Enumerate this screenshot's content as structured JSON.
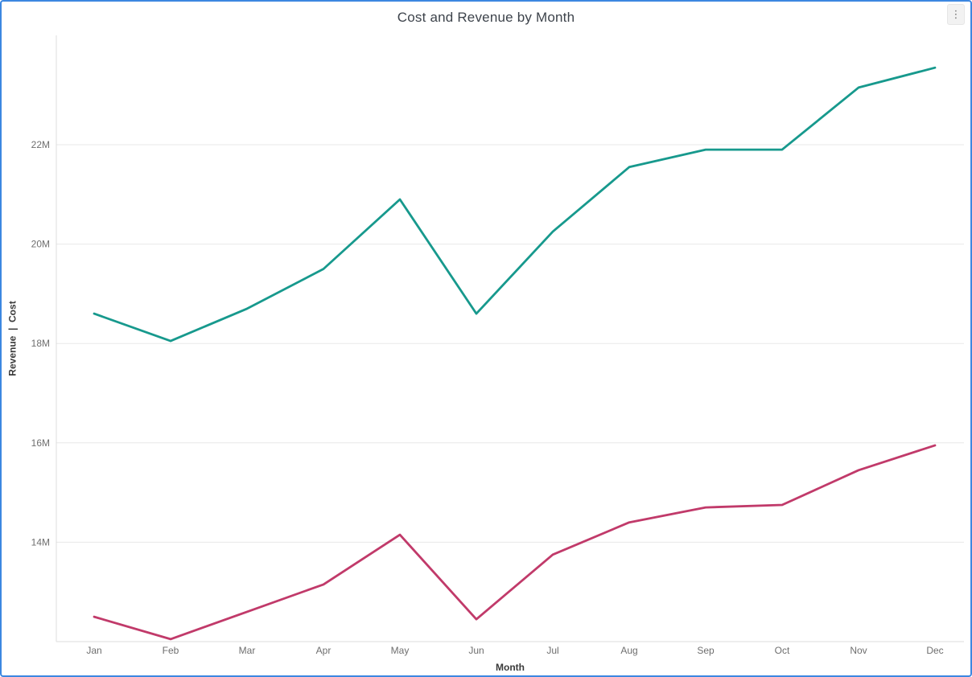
{
  "card": {
    "more_options_icon": "⋮",
    "border_color": "#3C87E1"
  },
  "chart_data": {
    "type": "line",
    "title": "Cost and Revenue by Month",
    "categories": [
      "Jan",
      "Feb",
      "Mar",
      "Apr",
      "May",
      "Jun",
      "Jul",
      "Aug",
      "Sep",
      "Oct",
      "Nov",
      "Dec"
    ],
    "series": [
      {
        "name": "Revenue",
        "color": "#17998D",
        "values": [
          18.6,
          18.05,
          18.7,
          19.5,
          20.9,
          18.6,
          20.25,
          21.55,
          21.9,
          21.9,
          23.15,
          23.55
        ]
      },
      {
        "name": "Cost",
        "color": "#C13A6A",
        "values": [
          12.5,
          12.05,
          12.6,
          13.15,
          14.15,
          12.45,
          13.75,
          14.4,
          14.7,
          14.75,
          15.45,
          15.95
        ]
      }
    ],
    "unit": "M",
    "xlabel": "Month",
    "ylabel": "Revenue  |  Cost",
    "ylim": [
      12,
      24.2
    ],
    "y_ticks": [
      {
        "label": "14M",
        "value": 14
      },
      {
        "label": "16M",
        "value": 16
      },
      {
        "label": "18M",
        "value": 18
      },
      {
        "label": "20M",
        "value": 20
      },
      {
        "label": "22M",
        "value": 22
      }
    ],
    "grid": "horizontal",
    "legend": "none"
  }
}
